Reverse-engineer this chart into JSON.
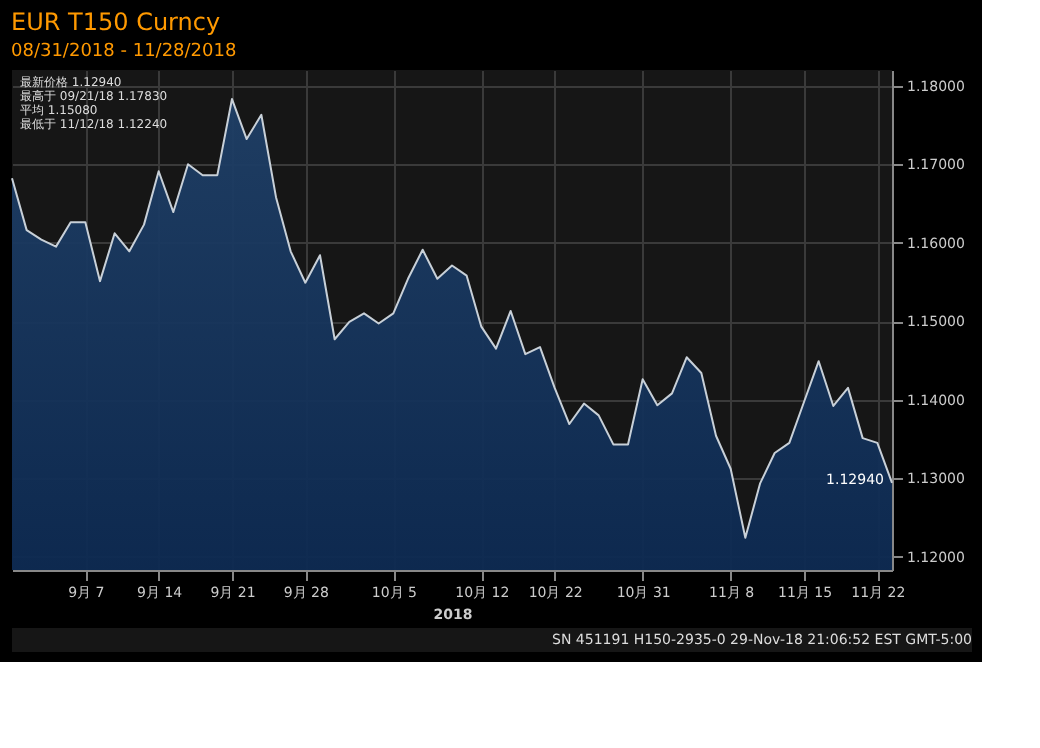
{
  "chart_data": {
    "type": "area",
    "title": "EUR T150 Curncy",
    "subtitle": "08/31/2018 - 11/28/2018",
    "xlabel": "2018",
    "categories": [
      null,
      null,
      null,
      null,
      null,
      "9月 7",
      null,
      null,
      null,
      null,
      "9月 14",
      null,
      null,
      null,
      null,
      "9月 21",
      null,
      null,
      null,
      null,
      "9月 28",
      null,
      null,
      null,
      null,
      null,
      "10月 5",
      null,
      null,
      null,
      null,
      null,
      "10月 12",
      null,
      null,
      null,
      null,
      "10月 22",
      null,
      null,
      null,
      null,
      null,
      "10月 31",
      null,
      null,
      null,
      null,
      null,
      "11月 8",
      null,
      null,
      null,
      null,
      "11月 15",
      null,
      null,
      null,
      null,
      "11月 22",
      null
    ],
    "series": [
      {
        "color": "#c8d0d8",
        "values": [
          1.1682,
          1.1616,
          1.1604,
          1.1595,
          1.1626,
          1.1626,
          1.1551,
          1.1612,
          1.1589,
          1.1623,
          1.1691,
          1.1639,
          1.17,
          1.1686,
          1.1686,
          1.1783,
          1.1732,
          1.1763,
          1.1658,
          1.1589,
          1.1549,
          1.1584,
          1.1477,
          1.1499,
          1.151,
          1.1497,
          1.151,
          1.1554,
          1.1591,
          1.1554,
          1.1571,
          1.1558,
          1.1493,
          1.1465,
          1.1513,
          1.1458,
          1.1467,
          1.1415,
          1.1369,
          1.1395,
          1.138,
          1.1343,
          1.1343,
          1.1426,
          1.1393,
          1.1408,
          1.1454,
          1.1434,
          1.1354,
          1.1312,
          1.1224,
          1.1293,
          1.1332,
          1.1345,
          1.1397,
          1.1449,
          1.1392,
          1.1415,
          1.1351,
          1.1345,
          1.1294
        ]
      }
    ],
    "ylim": [
      1.1183,
      1.182
    ],
    "yticks": [
      {
        "value": 1.12,
        "label": "1.12000"
      },
      {
        "value": 1.13,
        "label": "1.13000"
      },
      {
        "value": 1.14,
        "label": "1.14000"
      },
      {
        "value": 1.15,
        "label": "1.15000"
      },
      {
        "value": 1.16,
        "label": "1.16000"
      },
      {
        "value": 1.17,
        "label": "1.17000"
      },
      {
        "value": 1.18,
        "label": "1.18000"
      }
    ],
    "grid": true,
    "annotations": [
      "最新价格 1.12940",
      "最高于 09/21/18 1.17830",
      "平均 1.15080",
      "最低于 11/12/18 1.12240",
      "1.12940",
      "SN 451191 H150-2935-0 29-Nov-18 21:06:52 EST GMT-5:00"
    ]
  }
}
